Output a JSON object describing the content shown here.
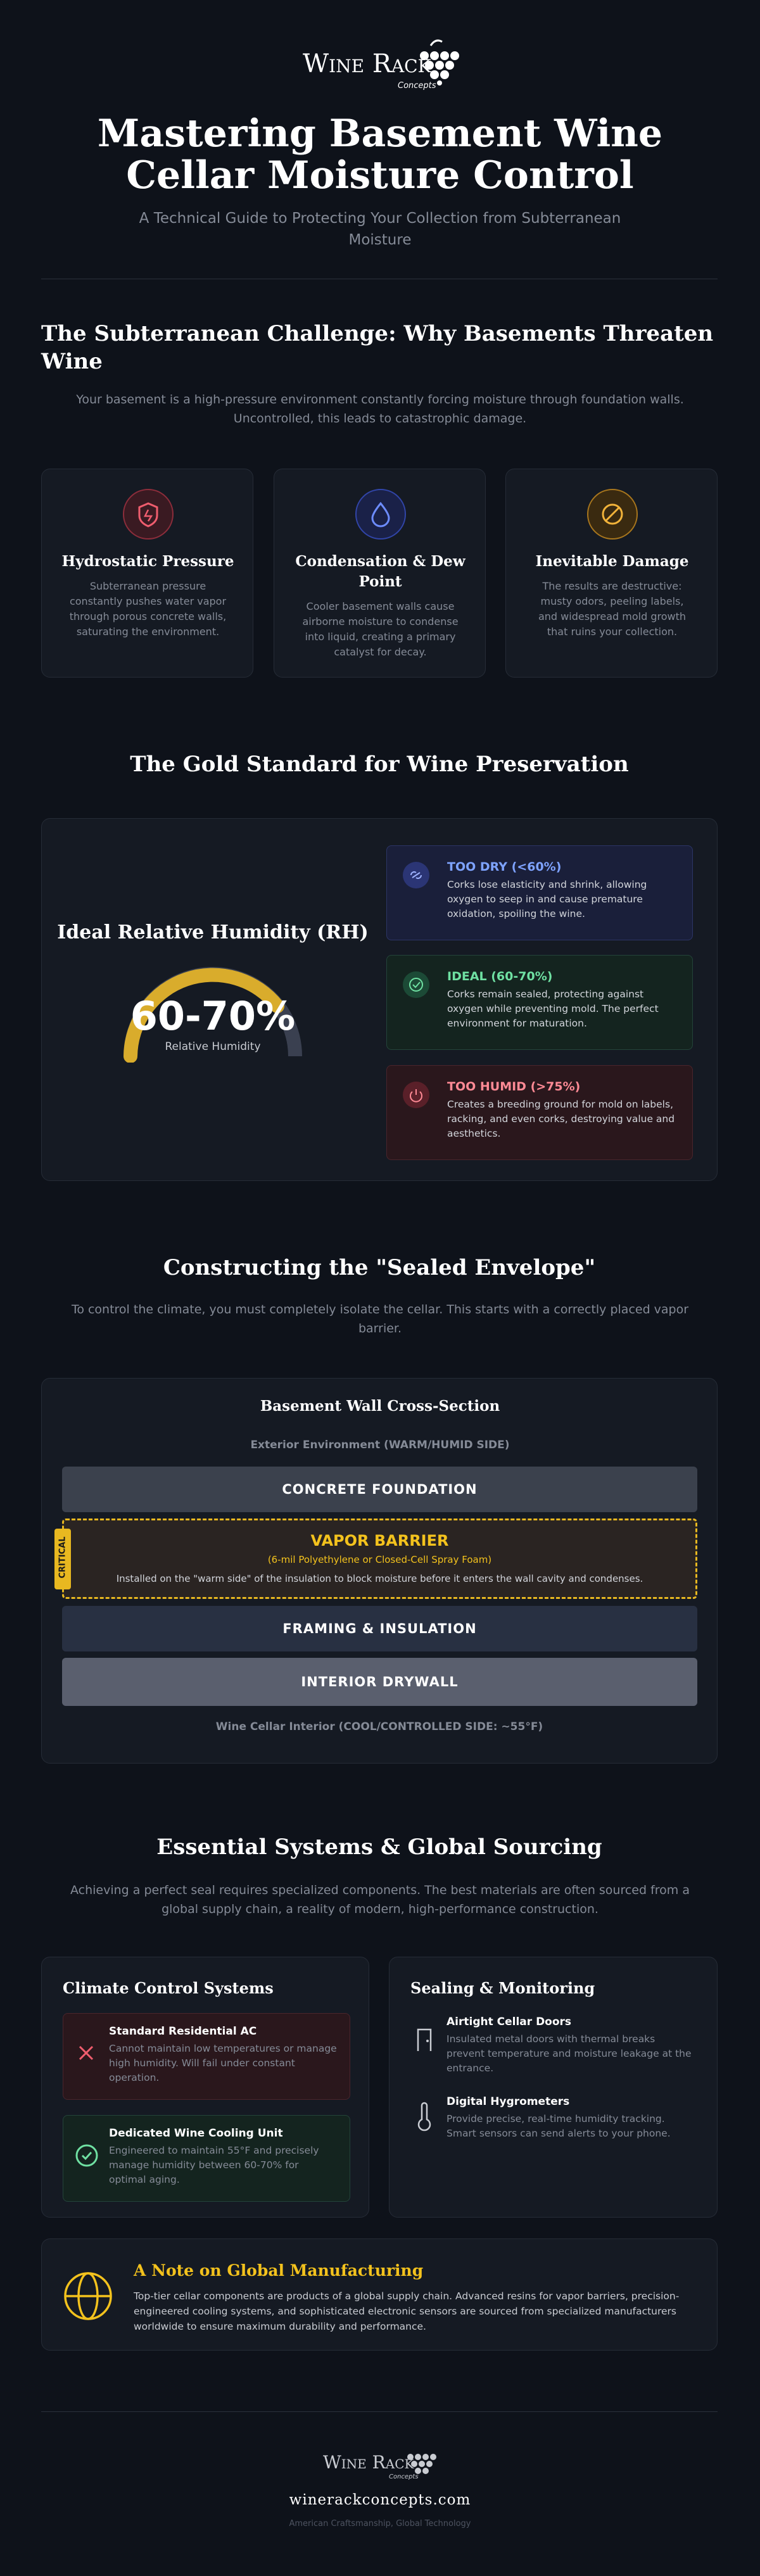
{
  "header": {
    "logo_main": "Wine Rack",
    "logo_sub": "Concepts",
    "title": "Mastering Basement Wine Cellar Moisture Control",
    "subtitle": "A Technical Guide to Protecting Your Collection from Subterranean Moisture"
  },
  "challenge": {
    "heading": "The Subterranean Challenge: Why Basements Threaten Wine",
    "intro": "Your basement is a high-pressure environment constantly forcing moisture through foundation walls. Uncontrolled, this leads to catastrophic damage.",
    "cards": [
      {
        "title": "Hydrostatic Pressure",
        "text": "Subterranean pressure constantly pushes water vapor through porous concrete walls, saturating the environment."
      },
      {
        "title": "Condensation & Dew Point",
        "text": "Cooler basement walls cause airborne moisture to condense into liquid, creating a primary catalyst for decay."
      },
      {
        "title": "Inevitable Damage",
        "text": "The results are destructive: musty odors, peeling labels, and widespread mold growth that ruins your collection."
      }
    ]
  },
  "gold_standard": {
    "heading": "The Gold Standard for Wine Preservation",
    "gauge_label": "Ideal Relative Humidity (RH)",
    "gauge_value": "60-70%",
    "gauge_caption": "Relative Humidity",
    "ranges": [
      {
        "title": "TOO DRY (<60%)",
        "text": "Corks lose elasticity and shrink, allowing oxygen to seep in and cause premature oxidation, spoiling the wine."
      },
      {
        "title": "IDEAL (60-70%)",
        "text": "Corks remain sealed, protecting against oxygen while preventing mold. The perfect environment for maturation."
      },
      {
        "title": "TOO HUMID (>75%)",
        "text": "Creates a breeding ground for mold on labels, racking, and even corks, destroying value and aesthetics."
      }
    ]
  },
  "envelope": {
    "heading": "Constructing the \"Sealed Envelope\"",
    "intro": "To control the climate, you must completely isolate the cellar. This starts with a correctly placed vapor barrier.",
    "diagram": {
      "title": "Basement Wall Cross-Section",
      "exterior": "Exterior Environment (WARM/HUMID SIDE)",
      "foundation": "CONCRETE FOUNDATION",
      "critical": "CRITICAL",
      "vapor_title": "VAPOR BARRIER",
      "vapor_sub": "(6-mil Polyethylene or Closed-Cell Spray Foam)",
      "vapor_note": "Installed on the \"warm side\" of the insulation to block moisture before it enters the wall cavity and condenses.",
      "framing": "FRAMING & INSULATION",
      "drywall": "INTERIOR DRYWALL",
      "interior": "Wine Cellar Interior (COOL/CONTROLLED SIDE: ~55°F)"
    }
  },
  "systems": {
    "heading": "Essential Systems & Global Sourcing",
    "intro": "Achieving a perfect seal requires specialized components. The best materials are often sourced from a global supply chain, a reality of modern, high-performance construction.",
    "climate": {
      "title": "Climate Control Systems",
      "items": [
        {
          "title": "Standard Residential AC",
          "text": "Cannot maintain low temperatures or manage high humidity. Will fail under constant operation."
        },
        {
          "title": "Dedicated Wine Cooling Unit",
          "text": "Engineered to maintain 55°F and precisely manage humidity between 60-70% for optimal aging."
        }
      ]
    },
    "sealing": {
      "title": "Sealing & Monitoring",
      "items": [
        {
          "title": "Airtight Cellar Doors",
          "text": "Insulated metal doors with thermal breaks prevent temperature and moisture leakage at the entrance."
        },
        {
          "title": "Digital Hygrometers",
          "text": "Provide precise, real-time humidity tracking. Smart sensors can send alerts to your phone."
        }
      ]
    },
    "note": {
      "title": "A Note on Global Manufacturing",
      "text": "Top-tier cellar components are products of a global supply chain. Advanced resins for vapor barriers, precision-engineered cooling systems, and sophisticated electronic sensors are sourced from specialized manufacturers worldwide to ensure maximum durability and performance."
    }
  },
  "footer": {
    "logo_main": "Wine Rack",
    "logo_sub": "Concepts",
    "url": "winerackconcepts.com",
    "tagline": "American Craftsmanship, Global Technology"
  }
}
